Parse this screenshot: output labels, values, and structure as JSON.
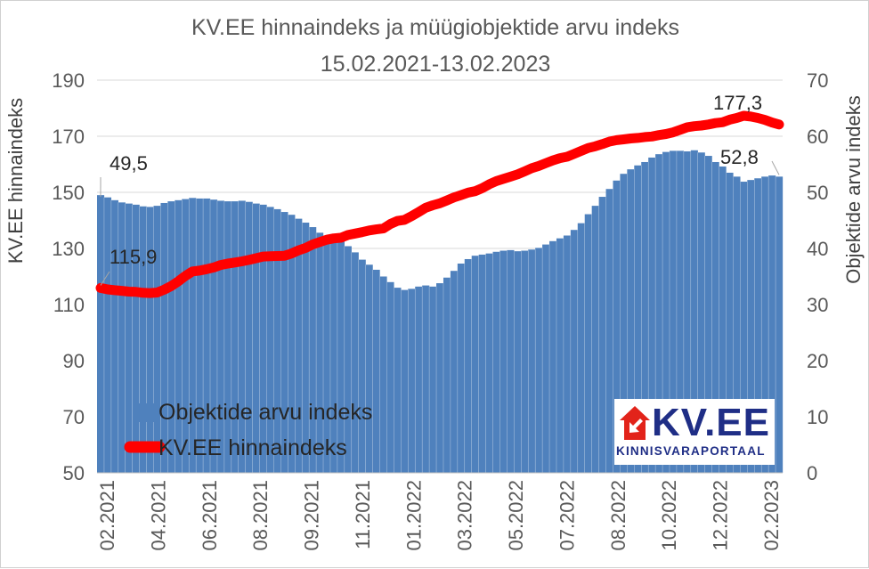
{
  "chart_data": {
    "type": "bar",
    "title": "KV.EE hinnaindeks ja müügiobjektide arvu indeks",
    "subtitle": "15.02.2021-13.02.2023",
    "y_left_label": "KV.EE hinnaindeks",
    "y_right_label": "Objektide arvu indeks",
    "y_left_lim": [
      50,
      190
    ],
    "y_left_ticks": [
      50,
      70,
      90,
      110,
      130,
      150,
      170,
      190
    ],
    "y_right_lim": [
      0,
      70
    ],
    "y_right_ticks": [
      0,
      10,
      20,
      30,
      40,
      50,
      60,
      70
    ],
    "x_tick_labels": [
      "02.2021",
      "04.2021",
      "06.2021",
      "08.2021",
      "09.2021",
      "11.2021",
      "01.2022",
      "03.2022",
      "05.2022",
      "07.2022",
      "08.2022",
      "10.2022",
      "12.2022",
      "02.2023"
    ],
    "legend_position": "bottom-left",
    "series": [
      {
        "name": "Objektide arvu indeks",
        "type": "bar",
        "axis": "right",
        "color": "#4f81bd",
        "values": [
          49.5,
          49.1,
          48.6,
          48.2,
          48.0,
          47.8,
          47.5,
          47.4,
          47.6,
          48.1,
          48.4,
          48.6,
          48.8,
          49.0,
          48.9,
          48.9,
          48.7,
          48.5,
          48.4,
          48.4,
          48.5,
          48.3,
          48.0,
          47.8,
          47.4,
          47.0,
          46.5,
          46.0,
          45.3,
          44.6,
          43.8,
          42.8,
          42.3,
          42.0,
          41.3,
          40.4,
          39.3,
          38.0,
          37.1,
          36.2,
          35.0,
          34.0,
          33.0,
          32.6,
          32.8,
          33.2,
          33.4,
          33.2,
          33.8,
          34.8,
          36.0,
          37.3,
          38.1,
          38.7,
          38.9,
          39.1,
          39.4,
          39.6,
          39.7,
          39.5,
          39.6,
          39.8,
          40.1,
          40.7,
          41.3,
          41.8,
          42.3,
          43.3,
          44.5,
          46.1,
          47.6,
          49.2,
          50.6,
          52.1,
          53.3,
          54.1,
          54.8,
          55.4,
          56.2,
          56.8,
          57.2,
          57.4,
          57.4,
          57.3,
          57.5,
          57.1,
          56.5,
          55.4,
          54.6,
          53.5,
          52.8,
          51.9,
          52.2,
          52.5,
          52.8,
          53.0,
          52.8
        ],
        "labels": [
          {
            "index": 0,
            "text": "49,5"
          },
          {
            "index": 96,
            "text": "52,8"
          }
        ]
      },
      {
        "name": "KV.EE hinnaindeks",
        "type": "line",
        "axis": "left",
        "color": "#ff0000",
        "values": [
          115.9,
          115.4,
          115.1,
          114.9,
          114.6,
          114.5,
          114.2,
          114.1,
          114.3,
          115.3,
          116.6,
          118.3,
          120.2,
          121.8,
          122.1,
          122.6,
          123.2,
          124.1,
          124.6,
          125.0,
          125.4,
          125.9,
          126.5,
          127.1,
          127.2,
          127.3,
          127.4,
          128.2,
          129.3,
          130.2,
          131.4,
          132.3,
          133.1,
          133.6,
          133.8,
          134.8,
          135.3,
          135.8,
          136.4,
          136.8,
          137.1,
          138.7,
          139.8,
          140.2,
          141.5,
          143.0,
          144.5,
          145.4,
          146.1,
          147.1,
          148.2,
          149.0,
          149.9,
          150.4,
          151.5,
          152.9,
          154.0,
          154.8,
          155.6,
          156.4,
          157.5,
          158.6,
          159.4,
          160.4,
          161.4,
          162.2,
          162.7,
          163.7,
          164.8,
          165.8,
          166.4,
          167.2,
          168.1,
          168.6,
          168.9,
          169.2,
          169.4,
          169.7,
          169.9,
          170.4,
          170.8,
          171.4,
          172.3,
          173.2,
          173.6,
          173.8,
          174.2,
          174.7,
          175.0,
          175.9,
          176.5,
          177.3,
          177.0,
          176.5,
          175.8,
          174.9,
          174.2
        ],
        "labels": [
          {
            "index": 0,
            "text": "115,9"
          },
          {
            "index": 91,
            "text": "177,3"
          }
        ]
      }
    ]
  },
  "logo": {
    "text": "KV.EE",
    "subtext": "KINNISVARAPORTAAL",
    "color": "#1f2e86",
    "accent": "#e2231a"
  }
}
